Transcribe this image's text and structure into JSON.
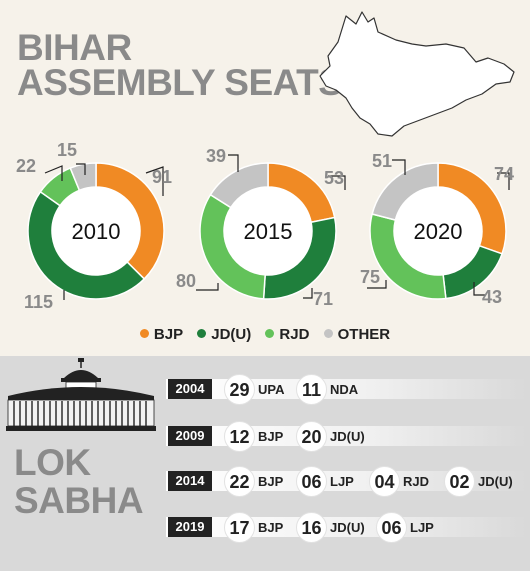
{
  "title": {
    "line1": "BIHAR",
    "line2": "ASSEMBLY SEATS"
  },
  "colors": {
    "BJP": "#f08a24",
    "JDU": "#1f7f3c",
    "RJD": "#63c25a",
    "OTHER": "#c4c4c4",
    "label": "#8a8a8a"
  },
  "chart_data": [
    {
      "type": "pie",
      "variant": "donut",
      "title": "2010",
      "labels": [
        "BJP",
        "JD(U)",
        "RJD",
        "OTHER"
      ],
      "values": [
        91,
        115,
        22,
        15
      ]
    },
    {
      "type": "pie",
      "variant": "donut",
      "title": "2015",
      "labels": [
        "BJP",
        "JD(U)",
        "RJD",
        "OTHER"
      ],
      "values": [
        53,
        71,
        80,
        39
      ]
    },
    {
      "type": "pie",
      "variant": "donut",
      "title": "2020",
      "labels": [
        "BJP",
        "JD(U)",
        "RJD",
        "OTHER"
      ],
      "values": [
        74,
        43,
        75,
        51
      ]
    },
    {
      "type": "table",
      "title": "LOK SABHA",
      "rows": [
        {
          "year": "2004",
          "entries": [
            {
              "value": "29",
              "party": "UPA"
            },
            {
              "value": "11",
              "party": "NDA"
            }
          ]
        },
        {
          "year": "2009",
          "entries": [
            {
              "value": "12",
              "party": "BJP"
            },
            {
              "value": "20",
              "party": "JD(U)"
            }
          ]
        },
        {
          "year": "2014",
          "entries": [
            {
              "value": "22",
              "party": "BJP"
            },
            {
              "value": "06",
              "party": "LJP"
            },
            {
              "value": "04",
              "party": "RJD"
            },
            {
              "value": "02",
              "party": "JD(U)"
            }
          ]
        },
        {
          "year": "2019",
          "entries": [
            {
              "value": "17",
              "party": "BJP"
            },
            {
              "value": "16",
              "party": "JD(U)"
            },
            {
              "value": "06",
              "party": "LJP"
            }
          ]
        }
      ]
    }
  ],
  "legend": [
    {
      "label": "BJP",
      "color": "#f08a24"
    },
    {
      "label": "JD(U)",
      "color": "#1f7f3c"
    },
    {
      "label": "RJD",
      "color": "#63c25a"
    },
    {
      "label": "OTHER",
      "color": "#c4c4c4"
    }
  ],
  "lok_sabha": {
    "line1": "LOK",
    "line2": "SABHA"
  },
  "icons": {
    "map": "bihar-map-icon",
    "parliament": "parliament-icon"
  }
}
